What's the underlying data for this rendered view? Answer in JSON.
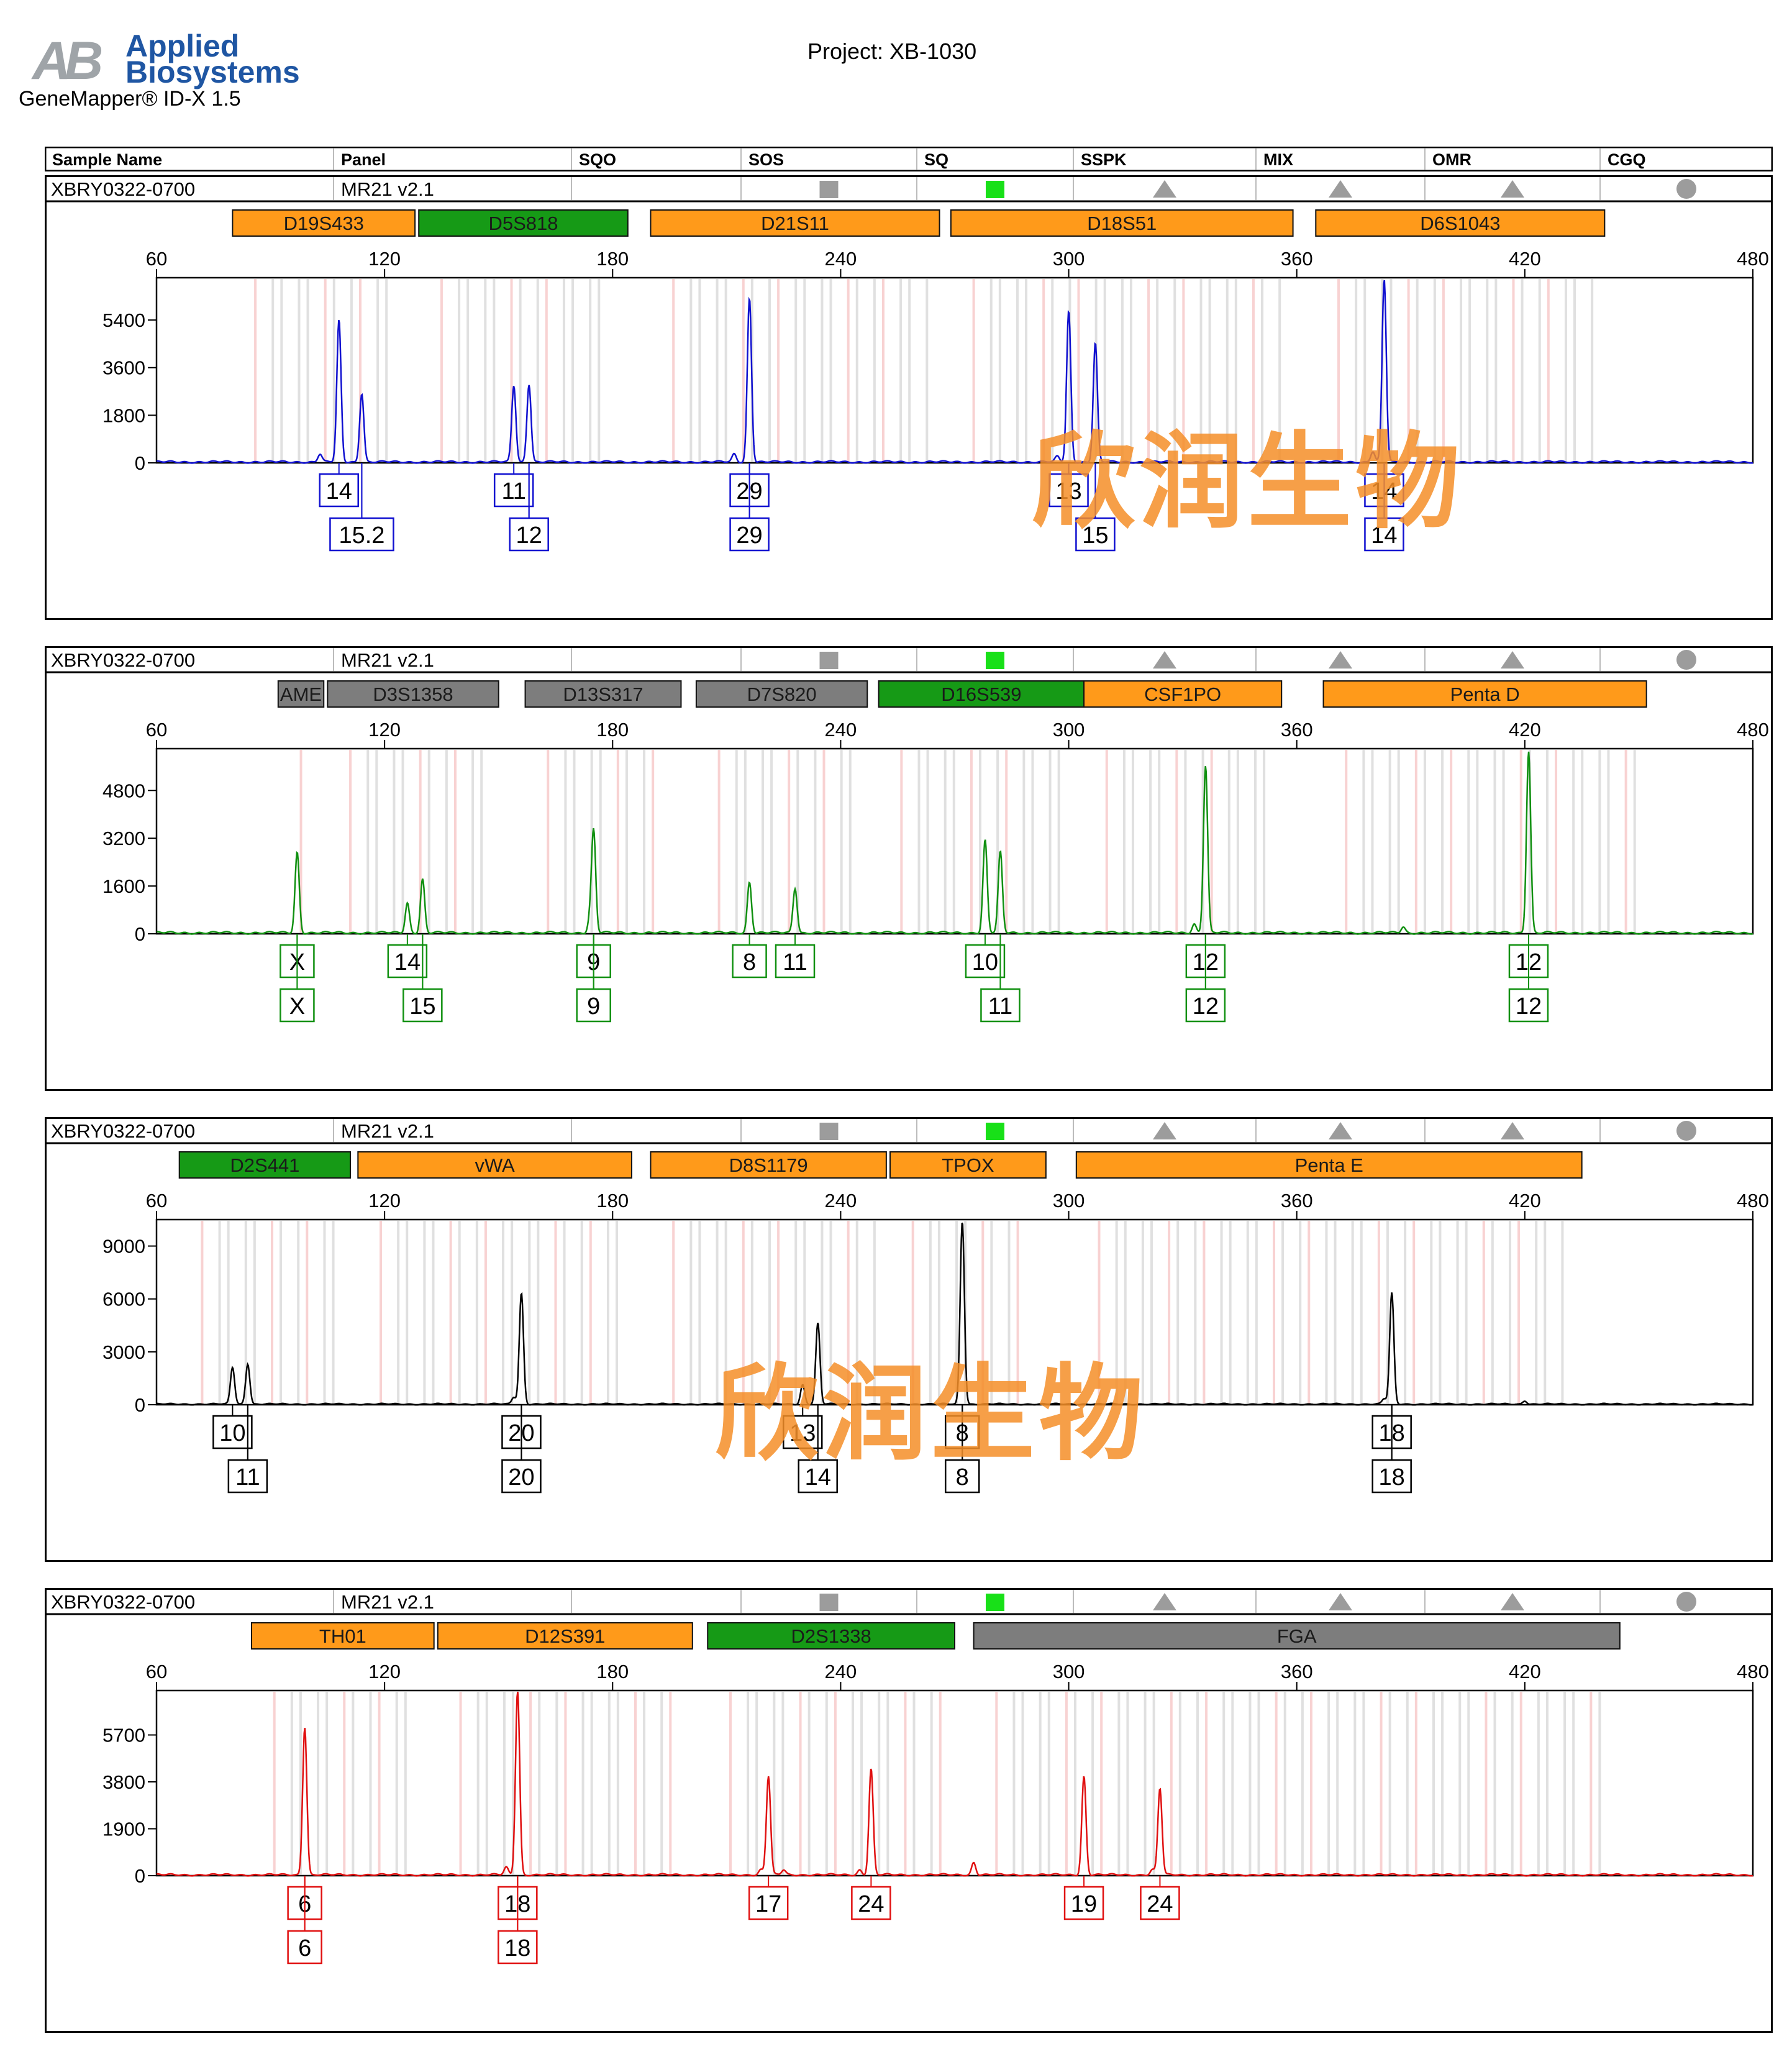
{
  "header": {
    "logo_letters": "AB",
    "logo_word1": "Applied",
    "logo_word2": "Biosystems",
    "app_name": "GeneMapper® ID-X  1.5",
    "project_label": "Project: XB-1030"
  },
  "table_columns": [
    "Sample Name",
    "Panel",
    "SQO",
    "SOS",
    "SQ",
    "SSPK",
    "MIX",
    "OMR",
    "CGQ"
  ],
  "watermark": "欣润生物",
  "colors": {
    "blue": "#1010d0",
    "green": "#109010",
    "black": "#000000",
    "red": "#e01010",
    "marker_orange": "#ff9a1a",
    "marker_green": "#169a16",
    "marker_gray": "#7d7d7d"
  },
  "chart_data": [
    {
      "type": "line",
      "dye": "blue",
      "sample_name": "XBRY0322-0700",
      "panel": "MR21  v2.1",
      "quality_flags": [
        {
          "column": "SOS",
          "shape": "square",
          "color": "gray"
        },
        {
          "column": "SQ",
          "shape": "square",
          "color": "green"
        },
        {
          "column": "SSPK",
          "shape": "triangle",
          "color": "gray"
        },
        {
          "column": "MIX",
          "shape": "triangle",
          "color": "gray"
        },
        {
          "column": "OMR",
          "shape": "triangle",
          "color": "gray"
        },
        {
          "column": "CGQ",
          "shape": "circle",
          "color": "gray"
        }
      ],
      "x_range": [
        60,
        480
      ],
      "x_ticks": [
        60,
        120,
        180,
        240,
        300,
        360,
        420,
        480
      ],
      "y_range": [
        0,
        7000
      ],
      "y_ticks": [
        0,
        1800,
        3600,
        5400
      ],
      "markers": [
        {
          "name": "D19S433",
          "start": 80,
          "end": 128,
          "color": "orange"
        },
        {
          "name": "D5S818",
          "start": 129,
          "end": 184,
          "color": "green"
        },
        {
          "name": "D21S11",
          "start": 190,
          "end": 266,
          "color": "orange"
        },
        {
          "name": "D18S51",
          "start": 269,
          "end": 359,
          "color": "orange"
        },
        {
          "name": "D6S1043",
          "start": 365,
          "end": 441,
          "color": "orange"
        }
      ],
      "peaks": [
        {
          "x": 108,
          "y": 5350
        },
        {
          "x": 114,
          "y": 2600
        },
        {
          "x": 154,
          "y": 2900
        },
        {
          "x": 158,
          "y": 2950
        },
        {
          "x": 216,
          "y": 6200
        },
        {
          "x": 300,
          "y": 5700
        },
        {
          "x": 307,
          "y": 4500
        },
        {
          "x": 383,
          "y": 6900
        },
        {
          "x": 103,
          "y": 300
        },
        {
          "x": 212,
          "y": 300
        },
        {
          "x": 380,
          "y": 400
        },
        {
          "x": 297,
          "y": 200
        }
      ],
      "allele_labels": [
        {
          "x": 108,
          "row": 1,
          "text": "14"
        },
        {
          "x": 114,
          "row": 2,
          "text": "15.2"
        },
        {
          "x": 154,
          "row": 1,
          "text": "11"
        },
        {
          "x": 158,
          "row": 2,
          "text": "12"
        },
        {
          "x": 216,
          "row": 1,
          "text": "29"
        },
        {
          "x": 216,
          "row": 2,
          "text": "29"
        },
        {
          "x": 300,
          "row": 1,
          "text": "13"
        },
        {
          "x": 307,
          "row": 2,
          "text": "15"
        },
        {
          "x": 383,
          "row": 1,
          "text": "14"
        },
        {
          "x": 383,
          "row": 2,
          "text": "14"
        }
      ]
    },
    {
      "type": "line",
      "dye": "green",
      "sample_name": "XBRY0322-0700",
      "panel": "MR21  v2.1",
      "quality_flags": [
        {
          "column": "SOS",
          "shape": "square",
          "color": "gray"
        },
        {
          "column": "SQ",
          "shape": "square",
          "color": "green"
        },
        {
          "column": "SSPK",
          "shape": "triangle",
          "color": "gray"
        },
        {
          "column": "MIX",
          "shape": "triangle",
          "color": "gray"
        },
        {
          "column": "OMR",
          "shape": "triangle",
          "color": "gray"
        },
        {
          "column": "CGQ",
          "shape": "circle",
          "color": "gray"
        }
      ],
      "x_range": [
        60,
        480
      ],
      "x_ticks": [
        60,
        120,
        180,
        240,
        300,
        360,
        420,
        480
      ],
      "y_range": [
        0,
        6200
      ],
      "y_ticks": [
        0,
        1600,
        3200,
        4800
      ],
      "markers": [
        {
          "name": "AME",
          "start": 92,
          "end": 104,
          "color": "gray"
        },
        {
          "name": "D3S1358",
          "start": 105,
          "end": 150,
          "color": "gray"
        },
        {
          "name": "D13S317",
          "start": 157,
          "end": 198,
          "color": "gray"
        },
        {
          "name": "D7S820",
          "start": 202,
          "end": 247,
          "color": "gray"
        },
        {
          "name": "D16S539",
          "start": 250,
          "end": 304,
          "color": "green"
        },
        {
          "name": "CSF1PO",
          "start": 304,
          "end": 356,
          "color": "orange"
        },
        {
          "name": "Penta D",
          "start": 367,
          "end": 452,
          "color": "orange"
        }
      ],
      "peaks": [
        {
          "x": 97,
          "y": 2700
        },
        {
          "x": 126,
          "y": 1000
        },
        {
          "x": 130,
          "y": 1800
        },
        {
          "x": 175,
          "y": 3400
        },
        {
          "x": 216,
          "y": 1700
        },
        {
          "x": 228,
          "y": 1500
        },
        {
          "x": 278,
          "y": 3100
        },
        {
          "x": 282,
          "y": 2700
        },
        {
          "x": 336,
          "y": 5600
        },
        {
          "x": 421,
          "y": 6100
        },
        {
          "x": 174,
          "y": 400
        },
        {
          "x": 333,
          "y": 300
        },
        {
          "x": 388,
          "y": 200
        }
      ],
      "allele_labels": [
        {
          "x": 97,
          "row": 1,
          "text": "X"
        },
        {
          "x": 97,
          "row": 2,
          "text": "X"
        },
        {
          "x": 126,
          "row": 1,
          "text": "14"
        },
        {
          "x": 130,
          "row": 2,
          "text": "15"
        },
        {
          "x": 175,
          "row": 1,
          "text": "9"
        },
        {
          "x": 175,
          "row": 2,
          "text": "9"
        },
        {
          "x": 216,
          "row": 1,
          "text": "8"
        },
        {
          "x": 228,
          "row": 1,
          "text": "11"
        },
        {
          "x": 278,
          "row": 1,
          "text": "10"
        },
        {
          "x": 282,
          "row": 2,
          "text": "11"
        },
        {
          "x": 336,
          "row": 1,
          "text": "12"
        },
        {
          "x": 336,
          "row": 2,
          "text": "12"
        },
        {
          "x": 421,
          "row": 1,
          "text": "12"
        },
        {
          "x": 421,
          "row": 2,
          "text": "12"
        }
      ]
    },
    {
      "type": "line",
      "dye": "black",
      "sample_name": "XBRY0322-0700",
      "panel": "MR21  v2.1",
      "quality_flags": [
        {
          "column": "SOS",
          "shape": "square",
          "color": "gray"
        },
        {
          "column": "SQ",
          "shape": "square",
          "color": "green"
        },
        {
          "column": "SSPK",
          "shape": "triangle",
          "color": "gray"
        },
        {
          "column": "MIX",
          "shape": "triangle",
          "color": "gray"
        },
        {
          "column": "OMR",
          "shape": "triangle",
          "color": "gray"
        },
        {
          "column": "CGQ",
          "shape": "circle",
          "color": "gray"
        }
      ],
      "x_range": [
        60,
        480
      ],
      "x_ticks": [
        60,
        120,
        180,
        240,
        300,
        360,
        420,
        480
      ],
      "y_range": [
        0,
        10500
      ],
      "y_ticks": [
        0,
        3000,
        6000,
        9000
      ],
      "markers": [
        {
          "name": "D2S441",
          "start": 66,
          "end": 111,
          "color": "green"
        },
        {
          "name": "vWA",
          "start": 113,
          "end": 185,
          "color": "orange"
        },
        {
          "name": "D8S1179",
          "start": 190,
          "end": 252,
          "color": "orange"
        },
        {
          "name": "TPOX",
          "start": 253,
          "end": 294,
          "color": "orange"
        },
        {
          "name": "Penta E",
          "start": 302,
          "end": 435,
          "color": "orange"
        }
      ],
      "peaks": [
        {
          "x": 80,
          "y": 2100
        },
        {
          "x": 84,
          "y": 2300
        },
        {
          "x": 156,
          "y": 6300
        },
        {
          "x": 230,
          "y": 1100
        },
        {
          "x": 234,
          "y": 4600
        },
        {
          "x": 272,
          "y": 10400
        },
        {
          "x": 385,
          "y": 6300
        },
        {
          "x": 154,
          "y": 400
        },
        {
          "x": 383,
          "y": 300
        },
        {
          "x": 420,
          "y": 200
        }
      ],
      "allele_labels": [
        {
          "x": 80,
          "row": 1,
          "text": "10"
        },
        {
          "x": 84,
          "row": 2,
          "text": "11"
        },
        {
          "x": 156,
          "row": 1,
          "text": "20"
        },
        {
          "x": 156,
          "row": 2,
          "text": "20"
        },
        {
          "x": 230,
          "row": 1,
          "text": "13"
        },
        {
          "x": 234,
          "row": 2,
          "text": "14"
        },
        {
          "x": 272,
          "row": 1,
          "text": "8"
        },
        {
          "x": 272,
          "row": 2,
          "text": "8"
        },
        {
          "x": 385,
          "row": 1,
          "text": "18"
        },
        {
          "x": 385,
          "row": 2,
          "text": "18"
        }
      ]
    },
    {
      "type": "line",
      "dye": "red",
      "sample_name": "XBRY0322-0700",
      "panel": "MR21  v2.1",
      "quality_flags": [
        {
          "column": "SOS",
          "shape": "square",
          "color": "gray"
        },
        {
          "column": "SQ",
          "shape": "square",
          "color": "green"
        },
        {
          "column": "SSPK",
          "shape": "triangle",
          "color": "gray"
        },
        {
          "column": "MIX",
          "shape": "triangle",
          "color": "gray"
        },
        {
          "column": "OMR",
          "shape": "triangle",
          "color": "gray"
        },
        {
          "column": "CGQ",
          "shape": "circle",
          "color": "gray"
        }
      ],
      "x_range": [
        60,
        480
      ],
      "x_ticks": [
        60,
        120,
        180,
        240,
        300,
        360,
        420,
        480
      ],
      "y_range": [
        0,
        7500
      ],
      "y_ticks": [
        0,
        1900,
        3800,
        5700
      ],
      "markers": [
        {
          "name": "TH01",
          "start": 85,
          "end": 133,
          "color": "orange"
        },
        {
          "name": "D12S391",
          "start": 134,
          "end": 201,
          "color": "orange"
        },
        {
          "name": "D2S1338",
          "start": 205,
          "end": 270,
          "color": "green"
        },
        {
          "name": "FGA",
          "start": 275,
          "end": 445,
          "color": "gray"
        }
      ],
      "peaks": [
        {
          "x": 99,
          "y": 6000
        },
        {
          "x": 155,
          "y": 7500
        },
        {
          "x": 221,
          "y": 4000
        },
        {
          "x": 248,
          "y": 4300
        },
        {
          "x": 275,
          "y": 500
        },
        {
          "x": 304,
          "y": 4000
        },
        {
          "x": 324,
          "y": 3500
        },
        {
          "x": 152,
          "y": 300
        },
        {
          "x": 219,
          "y": 200
        },
        {
          "x": 225,
          "y": 200
        },
        {
          "x": 245,
          "y": 200
        },
        {
          "x": 322,
          "y": 200
        }
      ],
      "allele_labels": [
        {
          "x": 99,
          "row": 1,
          "text": "6"
        },
        {
          "x": 99,
          "row": 2,
          "text": "6"
        },
        {
          "x": 155,
          "row": 1,
          "text": "18"
        },
        {
          "x": 155,
          "row": 2,
          "text": "18"
        },
        {
          "x": 221,
          "row": 1,
          "text": "17"
        },
        {
          "x": 248,
          "row": 1,
          "text": "24"
        },
        {
          "x": 304,
          "row": 1,
          "text": "19"
        },
        {
          "x": 324,
          "row": 1,
          "text": "24"
        }
      ]
    }
  ]
}
